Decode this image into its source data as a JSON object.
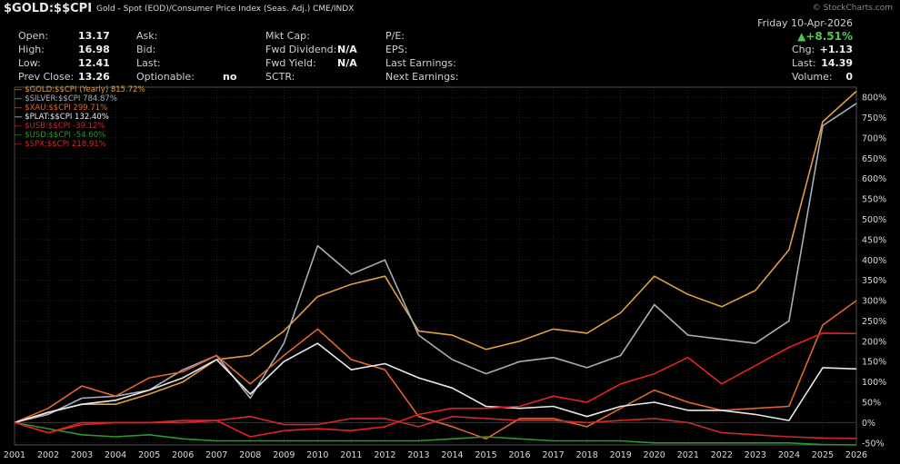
{
  "header": {
    "symbol": "$GOLD:$$CPI",
    "description": "Gold - Spot (EOD)/Consumer Price Index (Seas. Adj.)  CME/INDX",
    "watermark": "© StockCharts.com"
  },
  "quote": {
    "open_label": "Open:",
    "open": "13.17",
    "high_label": "High:",
    "high": "16.98",
    "low_label": "Low:",
    "low": "12.41",
    "prev_close_label": "Prev Close:",
    "prev_close": "13.26",
    "ask_label": "Ask:",
    "bid_label": "Bid:",
    "last_label": "Last:",
    "optionable_label": "Optionable:",
    "optionable": "no",
    "mkt_cap_label": "Mkt Cap:",
    "fwd_dividend_label": "Fwd Dividend:",
    "fwd_dividend": "N/A",
    "fwd_yield_label": "Fwd Yield:",
    "fwd_yield": "N/A",
    "sctr_label": "SCTR:",
    "pe_label": "P/E:",
    "eps_label": "EPS:",
    "last_earnings_label": "Last Earnings:",
    "next_earnings_label": "Next Earnings:",
    "date": "Friday  10-Apr-2026",
    "pct_change": "+8.51%",
    "chg_label": "Chg:",
    "chg": "+1.13",
    "last_price_label": "Last:",
    "last_price": "14.39",
    "volume_label": "Volume:",
    "volume": "0"
  },
  "colors": {
    "background": "#000000",
    "grid": "#3a3a3a",
    "axis_text": "#d8d8d8",
    "up_arrow": "#4ec94e"
  },
  "chart_data": {
    "type": "line",
    "x": [
      2001,
      2002,
      2003,
      2004,
      2005,
      2006,
      2007,
      2008,
      2009,
      2010,
      2011,
      2012,
      2013,
      2014,
      2015,
      2016,
      2017,
      2018,
      2019,
      2020,
      2021,
      2022,
      2023,
      2024,
      2025,
      2026
    ],
    "x_ticks": [
      "2001",
      "2002",
      "2003",
      "2004",
      "2005",
      "2006",
      "2007",
      "2008",
      "2009",
      "2010",
      "2011",
      "2012",
      "2013",
      "2014",
      "2015",
      "2016",
      "2017",
      "2018",
      "2019",
      "2020",
      "2021",
      "2022",
      "2023",
      "2024",
      "2025",
      "2026"
    ],
    "ylim": [
      -55,
      825
    ],
    "y_ticks": [
      -50,
      0,
      50,
      100,
      150,
      200,
      250,
      300,
      350,
      400,
      450,
      500,
      550,
      600,
      650,
      700,
      750,
      800
    ],
    "y_tick_labels": [
      "-50%",
      "0%",
      "50%",
      "100%",
      "150%",
      "200%",
      "250%",
      "300%",
      "350%",
      "400%",
      "450%",
      "500%",
      "550%",
      "600%",
      "650%",
      "700%",
      "750%",
      "800%"
    ],
    "grid": true,
    "legend_position": "top-left",
    "series": [
      {
        "name": "$GOLD:$$CPI (Yearly) 815.72%",
        "color": "#e0a040",
        "values": [
          0,
          25,
          45,
          45,
          70,
          100,
          155,
          165,
          225,
          310,
          340,
          360,
          225,
          215,
          180,
          200,
          230,
          220,
          270,
          360,
          315,
          285,
          325,
          425,
          740,
          815
        ]
      },
      {
        "name": "$SILVER:$$CPI 784.87%",
        "color": "#a8aeb8",
        "values": [
          0,
          20,
          60,
          65,
          80,
          130,
          165,
          60,
          195,
          435,
          365,
          400,
          215,
          155,
          120,
          150,
          160,
          135,
          165,
          290,
          215,
          205,
          195,
          250,
          730,
          785
        ]
      },
      {
        "name": "$XAU:$$CPI 299.71%",
        "color": "#e0662a",
        "values": [
          0,
          35,
          90,
          65,
          110,
          125,
          165,
          95,
          165,
          230,
          155,
          130,
          15,
          -10,
          -40,
          10,
          10,
          -10,
          35,
          80,
          50,
          30,
          35,
          40,
          240,
          300
        ]
      },
      {
        "name": "$PLAT:$$CPI 132.40%",
        "color": "#e8e8e8",
        "values": [
          0,
          25,
          45,
          55,
          80,
          110,
          155,
          70,
          150,
          195,
          130,
          145,
          110,
          85,
          40,
          35,
          40,
          15,
          40,
          50,
          30,
          30,
          20,
          5,
          135,
          132
        ]
      },
      {
        "name": "$USB:$$CPI -39.12%",
        "color": "#cc2a2a",
        "values": [
          0,
          -25,
          0,
          0,
          0,
          5,
          5,
          15,
          -5,
          -5,
          10,
          10,
          -10,
          15,
          10,
          5,
          5,
          0,
          5,
          10,
          0,
          -25,
          -30,
          -35,
          -38,
          -39
        ]
      },
      {
        "name": "$USD:$$CPI -54.60%",
        "color": "#2a9a2a",
        "values": [
          0,
          -15,
          -30,
          -35,
          -30,
          -40,
          -45,
          -45,
          -45,
          -45,
          -45,
          -45,
          -45,
          -40,
          -35,
          -40,
          -45,
          -45,
          -45,
          -50,
          -50,
          -50,
          -50,
          -50,
          -54,
          -55
        ]
      },
      {
        "name": "$SPX:$$CPI 218.91%",
        "color": "#e52222",
        "values": [
          0,
          -25,
          -5,
          0,
          0,
          0,
          5,
          -35,
          -20,
          -15,
          -20,
          -10,
          20,
          35,
          35,
          40,
          65,
          50,
          95,
          120,
          160,
          95,
          140,
          185,
          220,
          219
        ]
      }
    ]
  }
}
